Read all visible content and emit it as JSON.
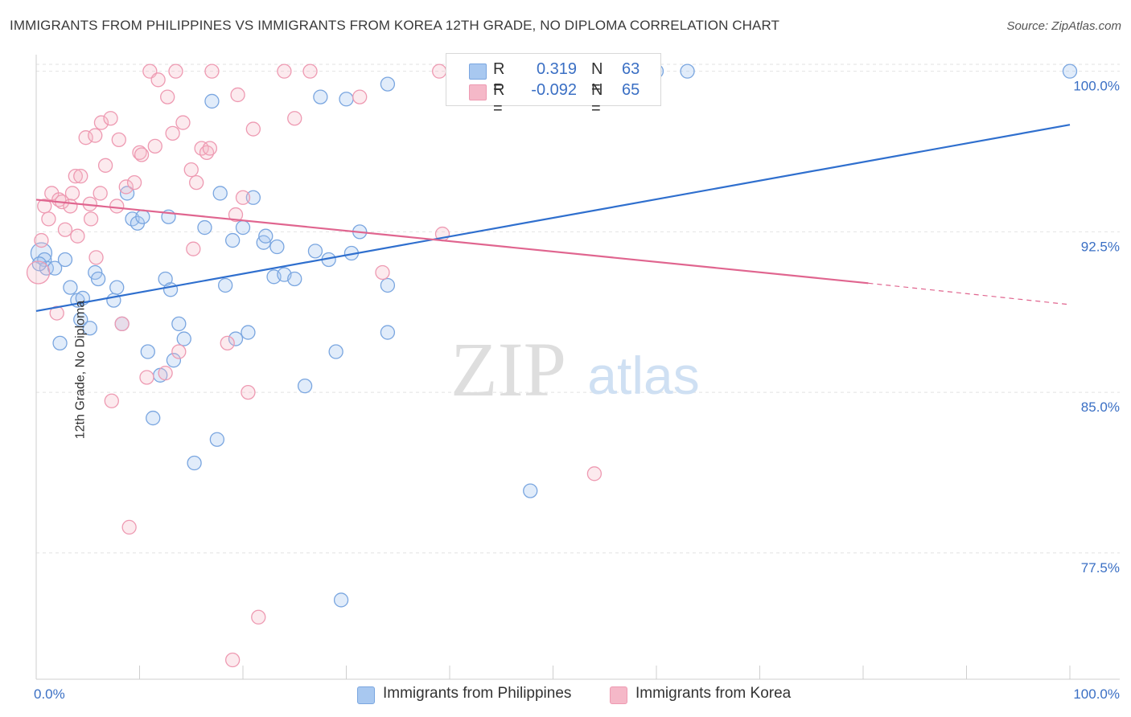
{
  "title": "IMMIGRANTS FROM PHILIPPINES VS IMMIGRANTS FROM KOREA 12TH GRADE, NO DIPLOMA CORRELATION CHART",
  "source": "Source: ZipAtlas.com",
  "watermark": {
    "zip": "ZIP",
    "atlas": "atlas"
  },
  "legend": {
    "rows": [
      {
        "r_label": "R =",
        "r_value": "0.319",
        "n_label": "N =",
        "n_value": "63",
        "color": "#a8c8f0"
      },
      {
        "r_label": "R =",
        "r_value": "-0.092",
        "n_label": "N =",
        "n_value": "65",
        "color": "#f5b8c8"
      }
    ]
  },
  "bottom_legend": [
    {
      "label": "Immigrants from Philippines",
      "color": "#a8c8f0"
    },
    {
      "label": "Immigrants from Korea",
      "color": "#f5b8c8"
    }
  ],
  "colors": {
    "blue_stroke": "#7aa6e0",
    "blue_fill": "rgba(168,200,240,0.35)",
    "blue_line": "#2f6fce",
    "pink_stroke": "#ee9ab2",
    "pink_fill": "rgba(245,184,200,0.30)",
    "pink_line": "#e0658f",
    "tick_text": "#3a6fc4",
    "grid": "#e2e2e2"
  },
  "chart_data": {
    "type": "scatter",
    "xlabel": "",
    "ylabel": "12th Grade, No Diploma",
    "x_tick_labels": [
      "0.0%",
      "100.0%"
    ],
    "y_tick_labels": [
      "100.0%",
      "92.5%",
      "85.0%",
      "77.5%"
    ],
    "y_ticks": [
      100.0,
      92.5,
      85.0,
      77.5
    ],
    "xlim": [
      0,
      100
    ],
    "ylim": [
      71.6,
      100.7
    ],
    "grid": true,
    "series": [
      {
        "name": "Immigrants from Philippines",
        "color": "#a8c8f0",
        "trend": {
          "x": [
            0,
            100
          ],
          "y": [
            88.8,
            97.5
          ],
          "dashed_from": null
        },
        "points": [
          [
            0.5,
            91.5
          ],
          [
            0.8,
            91.2
          ],
          [
            1.0,
            90.8
          ],
          [
            1.8,
            90.8
          ],
          [
            2.3,
            87.3
          ],
          [
            2.8,
            91.2
          ],
          [
            3.3,
            89.9
          ],
          [
            4.0,
            89.3
          ],
          [
            4.3,
            88.4
          ],
          [
            4.5,
            89.4
          ],
          [
            5.2,
            88.0
          ],
          [
            5.7,
            90.6
          ],
          [
            6.0,
            90.3
          ],
          [
            7.5,
            89.3
          ],
          [
            7.8,
            89.9
          ],
          [
            8.3,
            88.2
          ],
          [
            8.8,
            94.3
          ],
          [
            9.3,
            93.1
          ],
          [
            9.8,
            92.9
          ],
          [
            10.3,
            93.2
          ],
          [
            10.8,
            86.9
          ],
          [
            11.3,
            83.8
          ],
          [
            12.0,
            85.8
          ],
          [
            12.5,
            90.3
          ],
          [
            12.8,
            93.2
          ],
          [
            13.0,
            89.8
          ],
          [
            13.3,
            86.5
          ],
          [
            13.8,
            88.2
          ],
          [
            14.3,
            87.5
          ],
          [
            15.3,
            81.7
          ],
          [
            16.3,
            92.7
          ],
          [
            17.0,
            98.6
          ],
          [
            17.5,
            82.8
          ],
          [
            17.8,
            94.3
          ],
          [
            18.3,
            90.0
          ],
          [
            19.0,
            92.1
          ],
          [
            19.3,
            87.5
          ],
          [
            20.0,
            92.7
          ],
          [
            20.5,
            87.8
          ],
          [
            21.0,
            94.1
          ],
          [
            22.0,
            92.0
          ],
          [
            22.2,
            92.3
          ],
          [
            23.0,
            90.4
          ],
          [
            23.3,
            91.8
          ],
          [
            24.0,
            90.5
          ],
          [
            25.0,
            90.3
          ],
          [
            26.0,
            85.3
          ],
          [
            27.0,
            91.6
          ],
          [
            27.5,
            98.8
          ],
          [
            28.3,
            91.2
          ],
          [
            29.0,
            86.9
          ],
          [
            29.5,
            75.3
          ],
          [
            30.0,
            98.7
          ],
          [
            30.5,
            91.5
          ],
          [
            31.3,
            92.5
          ],
          [
            34.0,
            90.0
          ],
          [
            34.0,
            87.8
          ],
          [
            34.0,
            99.4
          ],
          [
            47.8,
            80.4
          ],
          [
            60.0,
            100.0
          ],
          [
            63.0,
            100.0
          ],
          [
            100.0,
            100.0
          ],
          [
            0.3,
            91.0
          ]
        ]
      },
      {
        "name": "Immigrants from Korea",
        "color": "#f5b8c8",
        "trend": {
          "x": [
            0,
            80.5,
            100
          ],
          "y": [
            94.0,
            90.1,
            89.1
          ],
          "dashed_from": 80.5
        },
        "points": [
          [
            0.2,
            90.6
          ],
          [
            0.5,
            92.1
          ],
          [
            0.8,
            93.7
          ],
          [
            1.2,
            93.1
          ],
          [
            1.5,
            94.3
          ],
          [
            2.0,
            88.7
          ],
          [
            2.2,
            94.0
          ],
          [
            2.5,
            93.9
          ],
          [
            2.8,
            92.6
          ],
          [
            3.3,
            93.7
          ],
          [
            3.5,
            94.3
          ],
          [
            3.8,
            95.1
          ],
          [
            4.0,
            92.3
          ],
          [
            4.3,
            95.1
          ],
          [
            4.8,
            96.9
          ],
          [
            5.2,
            93.8
          ],
          [
            5.3,
            93.1
          ],
          [
            5.7,
            97.0
          ],
          [
            5.8,
            91.3
          ],
          [
            6.2,
            94.3
          ],
          [
            6.3,
            97.6
          ],
          [
            6.7,
            95.6
          ],
          [
            7.2,
            97.8
          ],
          [
            7.3,
            84.6
          ],
          [
            7.8,
            93.7
          ],
          [
            8.0,
            96.8
          ],
          [
            8.3,
            88.2
          ],
          [
            8.7,
            94.6
          ],
          [
            9.0,
            78.7
          ],
          [
            9.5,
            94.8
          ],
          [
            10.0,
            96.2
          ],
          [
            10.2,
            96.1
          ],
          [
            10.7,
            85.7
          ],
          [
            11.0,
            100.0
          ],
          [
            11.5,
            96.5
          ],
          [
            11.8,
            99.6
          ],
          [
            12.5,
            85.9
          ],
          [
            12.7,
            98.8
          ],
          [
            13.2,
            97.1
          ],
          [
            13.5,
            100.0
          ],
          [
            13.8,
            86.9
          ],
          [
            14.2,
            97.6
          ],
          [
            15.0,
            95.4
          ],
          [
            15.2,
            91.7
          ],
          [
            15.5,
            94.8
          ],
          [
            16.0,
            96.4
          ],
          [
            16.5,
            96.2
          ],
          [
            16.8,
            96.4
          ],
          [
            17.0,
            100.0
          ],
          [
            18.5,
            87.3
          ],
          [
            19.3,
            93.3
          ],
          [
            19.5,
            98.9
          ],
          [
            20.0,
            94.1
          ],
          [
            20.5,
            85.0
          ],
          [
            21.0,
            97.3
          ],
          [
            21.5,
            74.5
          ],
          [
            24.0,
            100.0
          ],
          [
            25.0,
            97.8
          ],
          [
            26.5,
            100.0
          ],
          [
            31.3,
            98.8
          ],
          [
            33.5,
            90.6
          ],
          [
            39.0,
            100.0
          ],
          [
            39.3,
            92.4
          ],
          [
            54.0,
            81.2
          ],
          [
            19.0,
            72.5
          ]
        ]
      }
    ]
  }
}
